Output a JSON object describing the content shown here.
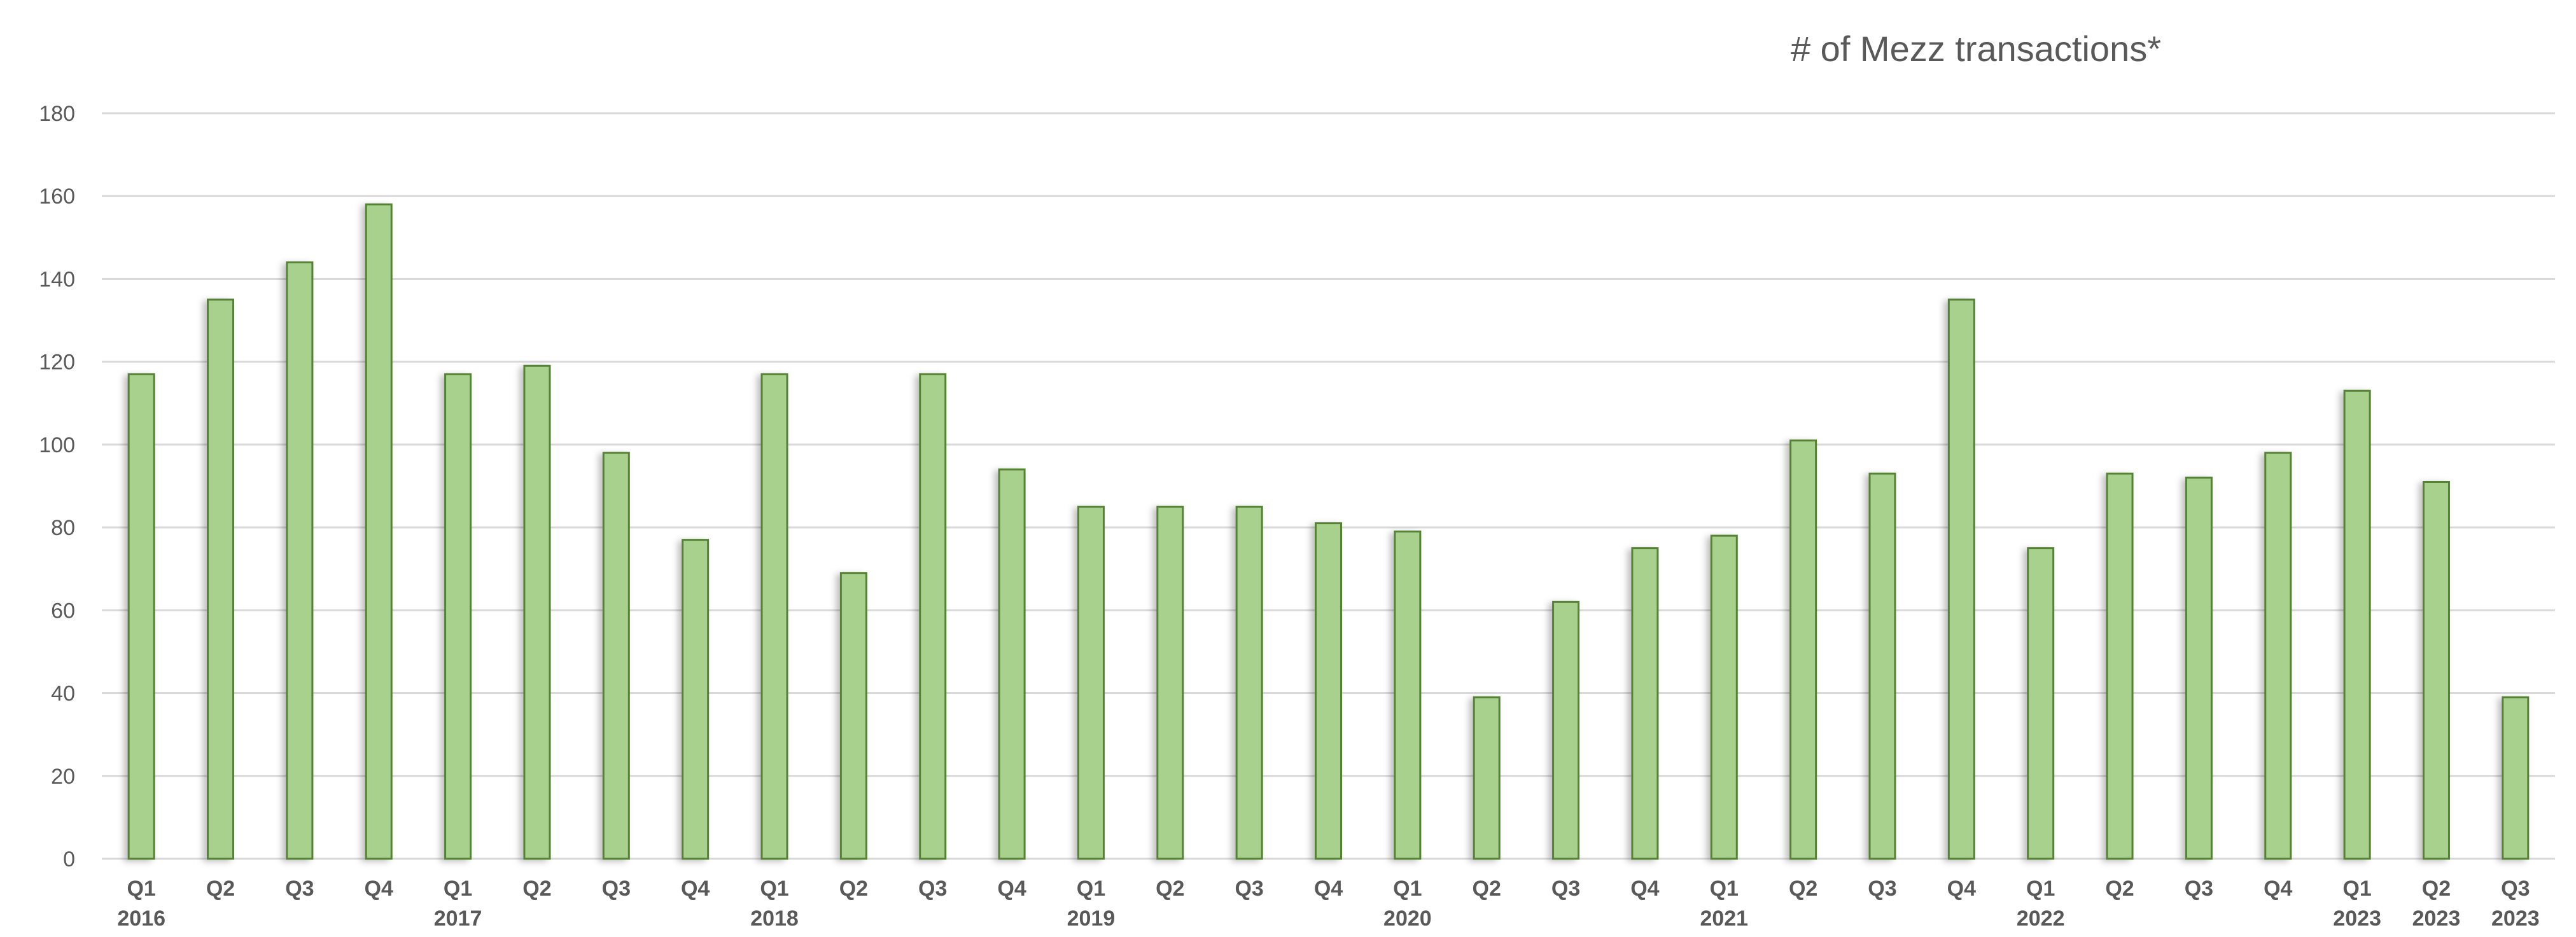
{
  "chart_data": {
    "type": "bar",
    "title": "# of Mezz transactions*",
    "xlabel": "",
    "ylabel": "",
    "ylim": [
      0,
      180
    ],
    "yticks": [
      0,
      20,
      40,
      60,
      80,
      100,
      120,
      140,
      160,
      180
    ],
    "grid": true,
    "legend": "none",
    "categories": [
      {
        "quarter": "Q1",
        "year": "2016"
      },
      {
        "quarter": "Q2",
        "year": ""
      },
      {
        "quarter": "Q3",
        "year": ""
      },
      {
        "quarter": "Q4",
        "year": ""
      },
      {
        "quarter": "Q1",
        "year": "2017"
      },
      {
        "quarter": "Q2",
        "year": ""
      },
      {
        "quarter": "Q3",
        "year": ""
      },
      {
        "quarter": "Q4",
        "year": ""
      },
      {
        "quarter": "Q1",
        "year": "2018"
      },
      {
        "quarter": "Q2",
        "year": ""
      },
      {
        "quarter": "Q3",
        "year": ""
      },
      {
        "quarter": "Q4",
        "year": ""
      },
      {
        "quarter": "Q1",
        "year": "2019"
      },
      {
        "quarter": "Q2",
        "year": ""
      },
      {
        "quarter": "Q3",
        "year": ""
      },
      {
        "quarter": "Q4",
        "year": ""
      },
      {
        "quarter": "Q1",
        "year": "2020"
      },
      {
        "quarter": "Q2",
        "year": ""
      },
      {
        "quarter": "Q3",
        "year": ""
      },
      {
        "quarter": "Q4",
        "year": ""
      },
      {
        "quarter": "Q1",
        "year": "2021"
      },
      {
        "quarter": "Q2",
        "year": ""
      },
      {
        "quarter": "Q3",
        "year": ""
      },
      {
        "quarter": "Q4",
        "year": ""
      },
      {
        "quarter": "Q1",
        "year": "2022"
      },
      {
        "quarter": "Q2",
        "year": ""
      },
      {
        "quarter": "Q3",
        "year": ""
      },
      {
        "quarter": "Q4",
        "year": ""
      },
      {
        "quarter": "Q1",
        "year": "2023"
      },
      {
        "quarter": "Q2",
        "year": "2023"
      },
      {
        "quarter": "Q3",
        "year": "2023"
      }
    ],
    "series": [
      {
        "values": [
          117,
          135,
          144,
          158,
          117,
          119,
          98,
          77,
          117,
          69,
          117,
          94,
          85,
          85,
          85,
          81,
          79,
          39,
          62,
          75,
          78,
          101,
          93,
          135,
          75,
          93,
          92,
          98,
          113,
          91,
          39
        ]
      }
    ],
    "colors": {
      "bar_fill": "#a9d18e",
      "bar_stroke": "#548235",
      "grid": "#d9d9d9",
      "text": "#595959"
    }
  }
}
